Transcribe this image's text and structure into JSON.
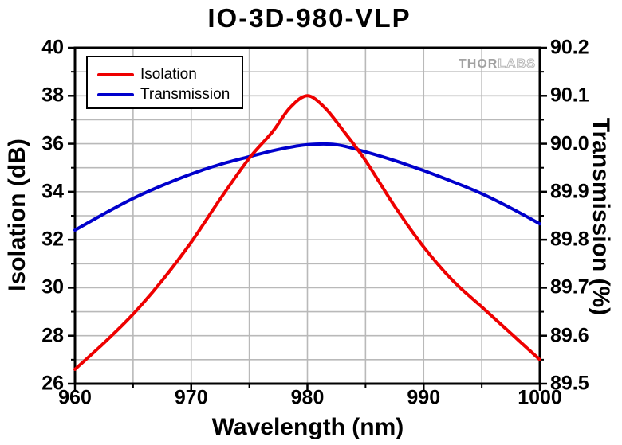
{
  "title": "IO-3D-980-VLP",
  "watermark": {
    "part1": "THOR",
    "part2": "LABS"
  },
  "legend": {
    "position": "top-left",
    "items": [
      {
        "label": "Isolation",
        "color": "#ee0000"
      },
      {
        "label": "Transmission",
        "color": "#0000cc"
      }
    ]
  },
  "axes": {
    "x": {
      "label": "Wavelength (nm)",
      "min": 960,
      "max": 1000,
      "major_ticks": [
        960,
        970,
        980,
        990,
        1000
      ],
      "minor_ticks": [
        965,
        975,
        985,
        995
      ],
      "gridlines": [
        965,
        970,
        975,
        980,
        985,
        990,
        995
      ]
    },
    "y_left": {
      "label": "Isolation (dB)",
      "min": 26,
      "max": 40,
      "major_ticks": [
        40,
        38,
        36,
        34,
        32,
        30,
        28,
        26
      ],
      "minor_ticks": [
        39,
        37,
        35,
        33,
        31,
        29,
        27
      ],
      "gridlines": [
        27,
        28,
        29,
        30,
        31,
        32,
        33,
        34,
        35,
        36,
        37,
        38,
        39
      ]
    },
    "y_right": {
      "label": "Transmission (%)",
      "min": 89.5,
      "max": 90.2,
      "major_ticks": [
        90.2,
        90.1,
        90.0,
        89.9,
        89.8,
        89.7,
        89.6,
        89.5
      ],
      "minor_ticks": [
        90.15,
        90.05,
        89.95,
        89.85,
        89.75,
        89.65,
        89.55
      ]
    }
  },
  "chart_data": {
    "type": "line",
    "title": "IO-3D-980-VLP",
    "xlabel": "Wavelength (nm)",
    "ylabel_left": "Isolation (dB)",
    "ylabel_right": "Transmission (%)",
    "xlim": [
      960,
      1000
    ],
    "ylim_left": [
      26,
      40
    ],
    "ylim_right": [
      89.5,
      90.2
    ],
    "grid": true,
    "legend_position": "top-left",
    "colors": {
      "grid": "#b9b9b9",
      "frame": "#000000"
    },
    "series": [
      {
        "name": "Isolation",
        "axis": "left",
        "color": "#ee0000",
        "x": [
          960,
          962.5,
          965,
          967.5,
          970,
          972.5,
          975,
          977,
          978.5,
          980,
          981.5,
          983,
          985,
          987.5,
          990,
          992.5,
          995,
          997.5,
          1000
        ],
        "y": [
          26.6,
          27.7,
          28.9,
          30.3,
          31.9,
          33.7,
          35.4,
          36.5,
          37.5,
          38.0,
          37.5,
          36.6,
          35.3,
          33.4,
          31.7,
          30.3,
          29.2,
          28.1,
          27.0
        ]
      },
      {
        "name": "Transmission",
        "axis": "right",
        "color": "#0000cc",
        "x": [
          960,
          962.5,
          965,
          967.5,
          970,
          972.5,
          975,
          977.5,
          980,
          982.5,
          985,
          987.5,
          990,
          992.5,
          995,
          997.5,
          1000
        ],
        "y": [
          89.82,
          89.854,
          89.886,
          89.913,
          89.937,
          89.957,
          89.973,
          89.988,
          89.998,
          89.998,
          89.983,
          89.965,
          89.944,
          89.921,
          89.896,
          89.866,
          89.833
        ]
      }
    ]
  }
}
